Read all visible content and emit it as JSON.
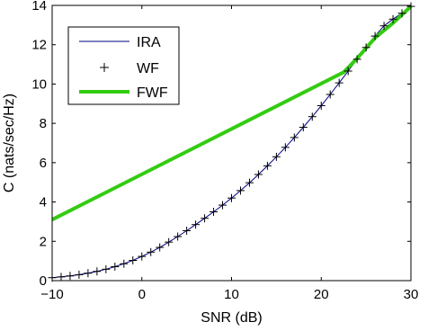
{
  "chart_data": {
    "type": "line",
    "title": "",
    "xlabel": "SNR (dB)",
    "ylabel": "C (nats/sec/Hz)",
    "xlim": [
      -10,
      30
    ],
    "ylim": [
      0,
      14
    ],
    "xticks": [
      -10,
      0,
      10,
      20,
      30
    ],
    "xtick_labels": [
      "−10",
      "0",
      "10",
      "20",
      "30"
    ],
    "yticks": [
      0,
      2,
      4,
      6,
      8,
      10,
      12,
      14
    ],
    "ytick_labels": [
      "0",
      "2",
      "4",
      "6",
      "8",
      "10",
      "12",
      "14"
    ],
    "grid": false,
    "legend": {
      "placement": "top-left",
      "entries": [
        "IRA",
        "WF",
        "FWF"
      ]
    },
    "colors": {
      "IRA": "#00007f",
      "WF": "#000000",
      "FWF": "#33cc11"
    },
    "series": [
      {
        "name": "IRA",
        "style": "line",
        "x": [
          -10,
          -9,
          -8,
          -7,
          -6,
          -5,
          -4,
          -3,
          -2,
          -1,
          0,
          1,
          2,
          3,
          4,
          5,
          6,
          7,
          8,
          9,
          10,
          11,
          12,
          13,
          14,
          15,
          16,
          17,
          18,
          19,
          20,
          21,
          22,
          23,
          24,
          25,
          26,
          27,
          28,
          29,
          30
        ],
        "y": [
          0.15,
          0.19,
          0.24,
          0.3,
          0.38,
          0.47,
          0.58,
          0.71,
          0.86,
          1.03,
          1.23,
          1.45,
          1.69,
          1.96,
          2.24,
          2.54,
          2.85,
          3.17,
          3.5,
          3.84,
          4.2,
          4.58,
          4.98,
          5.4,
          5.84,
          6.3,
          6.78,
          7.28,
          7.8,
          8.34,
          8.9,
          9.47,
          10.06,
          10.66,
          11.26,
          11.86,
          12.44,
          12.96,
          13.3,
          13.6,
          13.95
        ]
      },
      {
        "name": "WF",
        "style": "markers",
        "x": [
          -10,
          -9,
          -8,
          -7,
          -6,
          -5,
          -4,
          -3,
          -2,
          -1,
          0,
          1,
          2,
          3,
          4,
          5,
          6,
          7,
          8,
          9,
          10,
          11,
          12,
          13,
          14,
          15,
          16,
          17,
          18,
          19,
          20,
          21,
          22,
          23,
          24,
          25,
          26,
          27,
          28,
          29,
          30
        ],
        "y": [
          0.15,
          0.19,
          0.24,
          0.3,
          0.38,
          0.47,
          0.58,
          0.71,
          0.86,
          1.03,
          1.23,
          1.45,
          1.69,
          1.96,
          2.24,
          2.54,
          2.85,
          3.17,
          3.5,
          3.84,
          4.2,
          4.58,
          4.98,
          5.4,
          5.84,
          6.3,
          6.78,
          7.28,
          7.8,
          8.34,
          8.9,
          9.47,
          10.06,
          10.66,
          11.26,
          11.86,
          12.44,
          12.96,
          13.3,
          13.6,
          13.95
        ]
      },
      {
        "name": "FWF",
        "style": "thick-line",
        "x": [
          -10,
          22.5,
          24,
          26,
          28,
          30
        ],
        "y": [
          3.1,
          10.6,
          11.3,
          12.35,
          13.1,
          13.95
        ]
      }
    ]
  }
}
